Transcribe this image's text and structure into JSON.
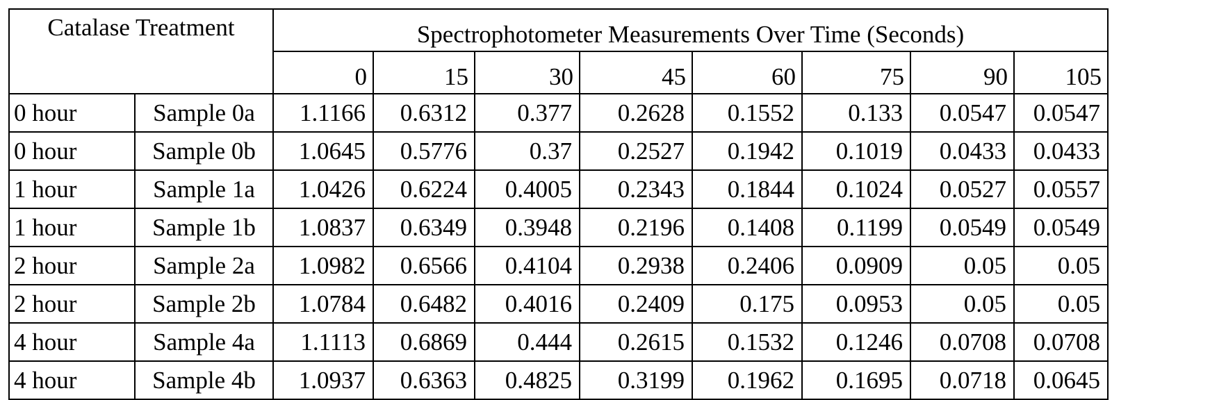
{
  "table": {
    "treatment_header": "Catalase Treatment",
    "measurements_header": "Spectrophotometer Measurements Over Time (Seconds)",
    "times": [
      "0",
      "15",
      "30",
      "45",
      "60",
      "75",
      "90",
      "105"
    ],
    "rows": [
      {
        "hour": "0 hour",
        "sample": "Sample 0a",
        "values": [
          "1.1166",
          "0.6312",
          "0.377",
          "0.2628",
          "0.1552",
          "0.133",
          "0.0547",
          "0.0547"
        ]
      },
      {
        "hour": "0 hour",
        "sample": "Sample 0b",
        "values": [
          "1.0645",
          "0.5776",
          "0.37",
          "0.2527",
          "0.1942",
          "0.1019",
          "0.0433",
          "0.0433"
        ]
      },
      {
        "hour": "1 hour",
        "sample": "Sample 1a",
        "values": [
          "1.0426",
          "0.6224",
          "0.4005",
          "0.2343",
          "0.1844",
          "0.1024",
          "0.0527",
          "0.0557"
        ]
      },
      {
        "hour": "1 hour",
        "sample": "Sample 1b",
        "values": [
          "1.0837",
          "0.6349",
          "0.3948",
          "0.2196",
          "0.1408",
          "0.1199",
          "0.0549",
          "0.0549"
        ]
      },
      {
        "hour": "2 hour",
        "sample": "Sample 2a",
        "values": [
          "1.0982",
          "0.6566",
          "0.4104",
          "0.2938",
          "0.2406",
          "0.0909",
          "0.05",
          "0.05"
        ]
      },
      {
        "hour": "2 hour",
        "sample": "Sample 2b",
        "values": [
          "1.0784",
          "0.6482",
          "0.4016",
          "0.2409",
          "0.175",
          "0.0953",
          "0.05",
          "0.05"
        ]
      },
      {
        "hour": "4 hour",
        "sample": "Sample 4a",
        "values": [
          "1.1113",
          "0.6869",
          "0.444",
          "0.2615",
          "0.1532",
          "0.1246",
          "0.0708",
          "0.0708"
        ]
      },
      {
        "hour": "4 hour",
        "sample": "Sample 4b",
        "values": [
          "1.0937",
          "0.6363",
          "0.4825",
          "0.3199",
          "0.1962",
          "0.1695",
          "0.0718",
          "0.0645"
        ]
      }
    ]
  }
}
